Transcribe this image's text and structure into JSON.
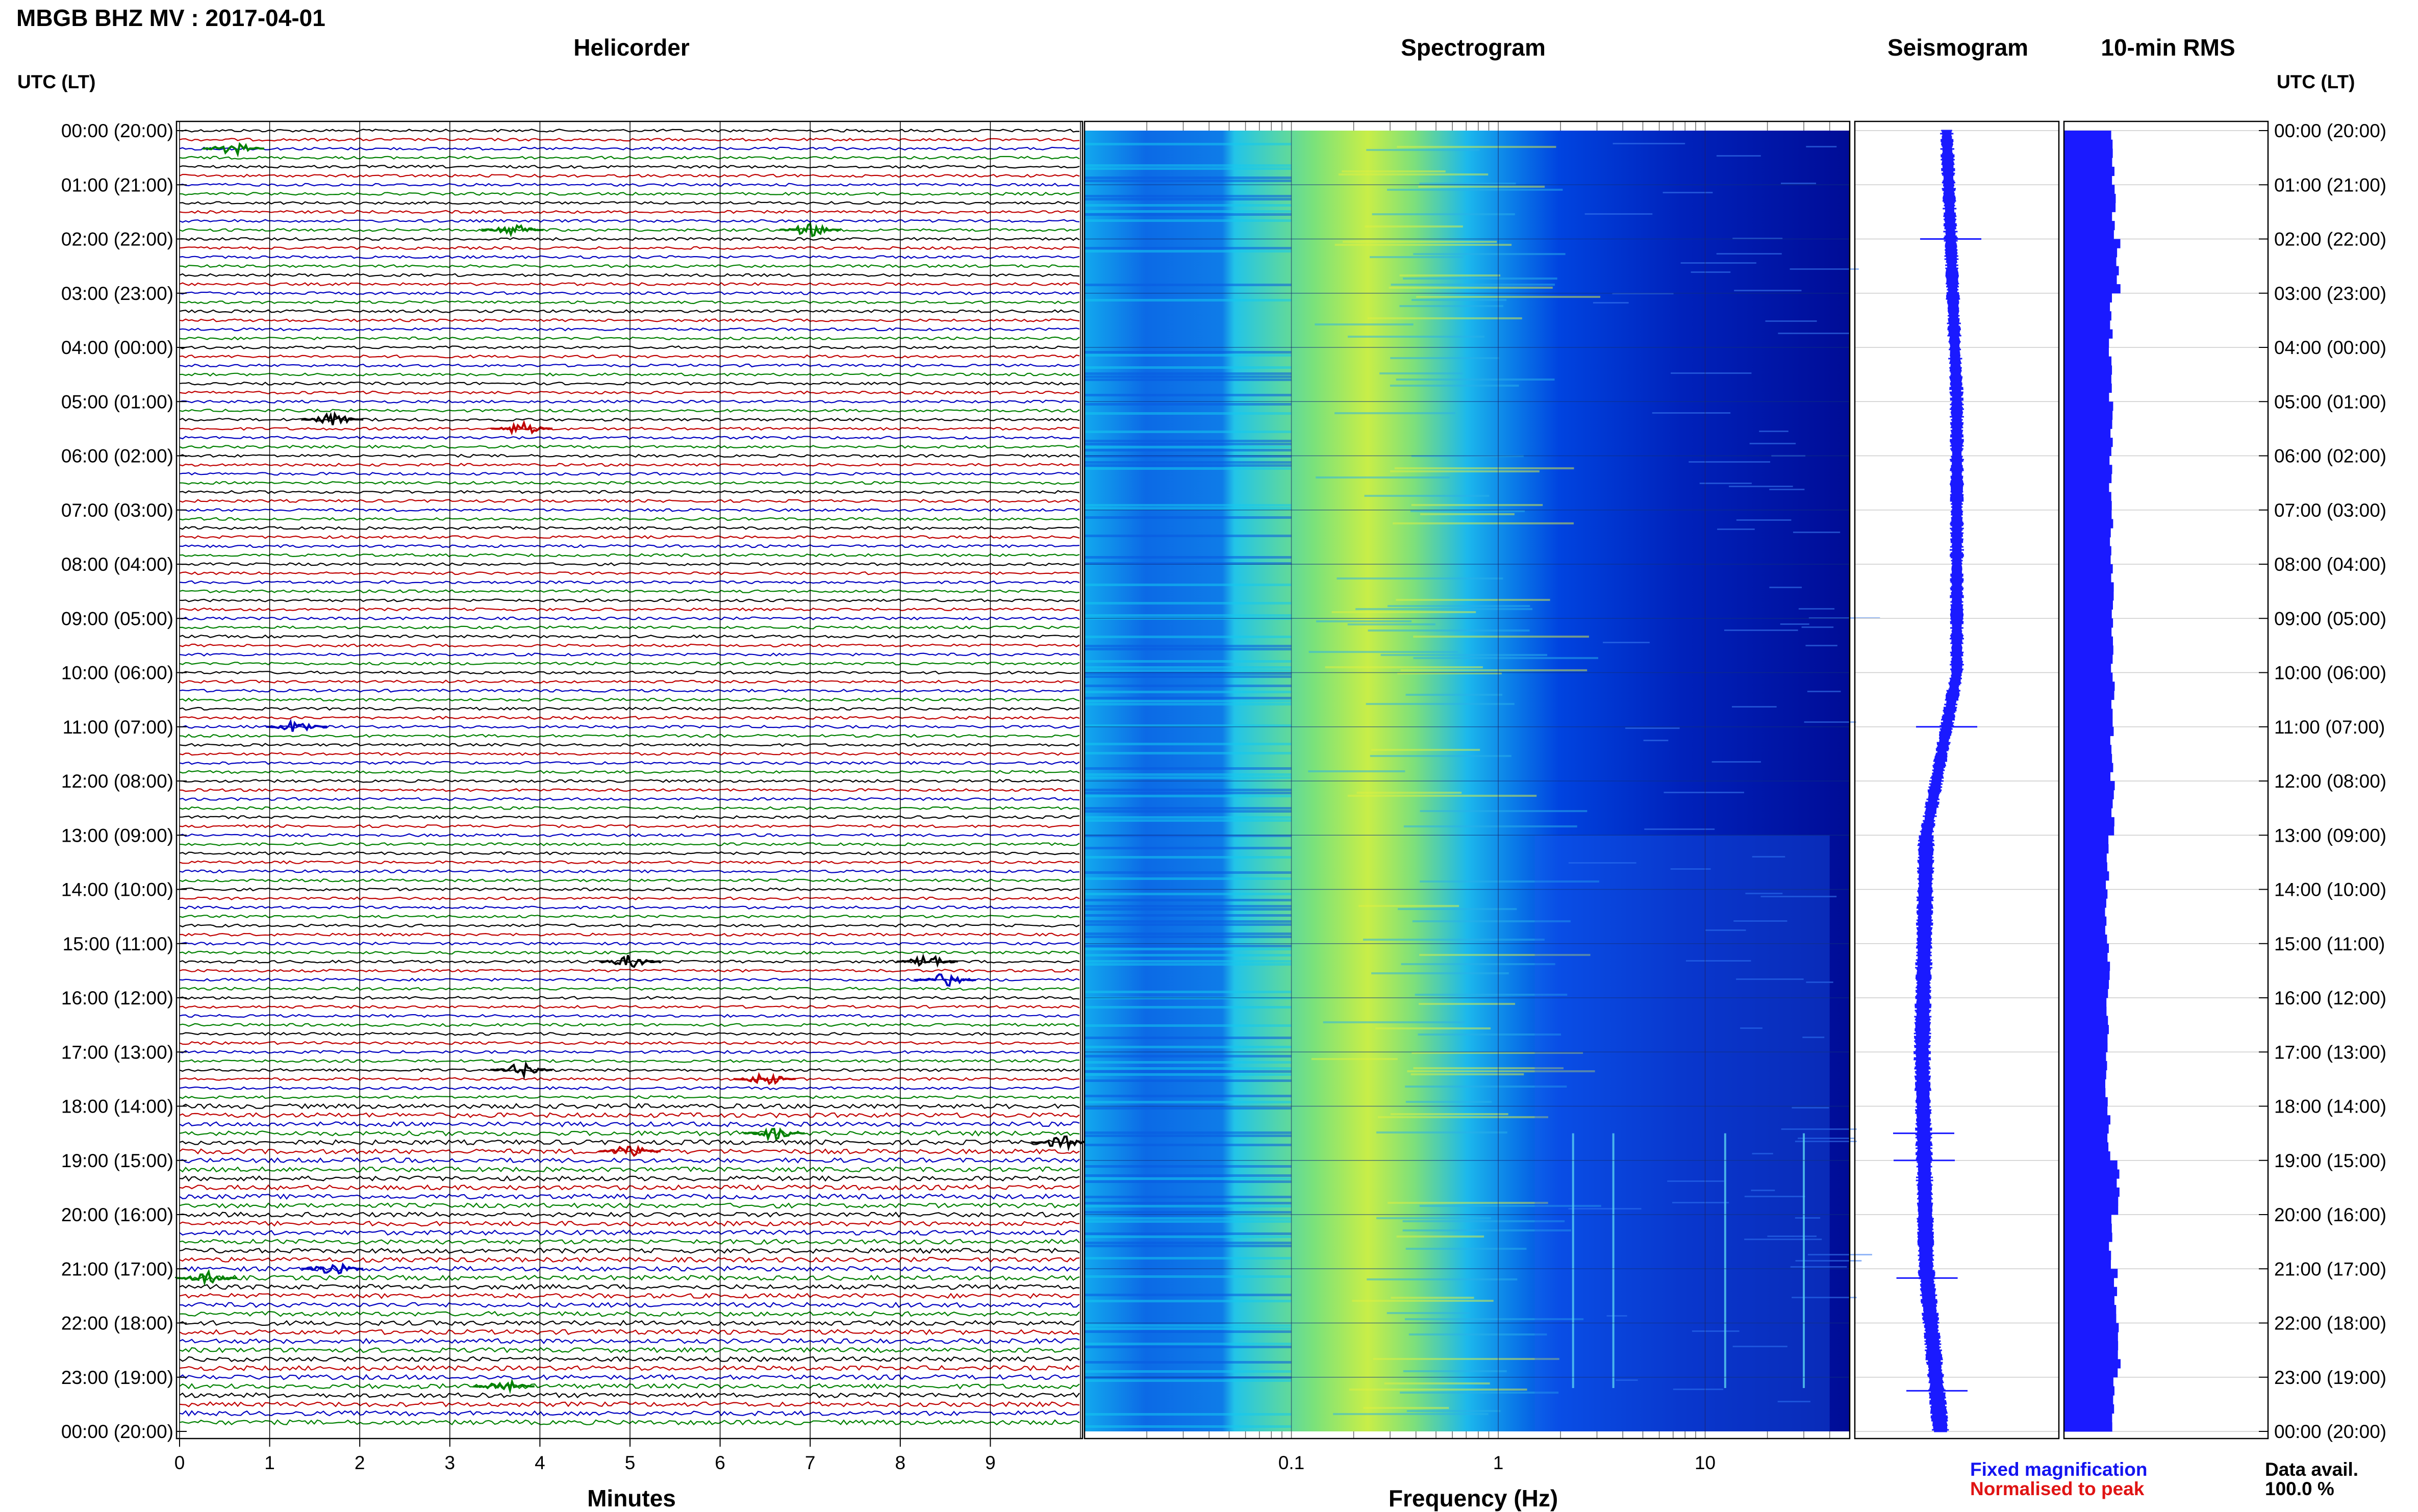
{
  "title": "MBGB BHZ MV : 2017-04-01",
  "panels": {
    "helicorder": "Helicorder",
    "spectrogram": "Spectrogram",
    "seismogram": "Seismogram",
    "rms": "10-min RMS"
  },
  "utc_label": "UTC (LT)",
  "legend": {
    "fixed": "Fixed magnification",
    "normalised": "Normalised to peak"
  },
  "data_avail": {
    "label": "Data avail.",
    "value": "100.0 %"
  },
  "colors": {
    "trace_cycle": [
      "#000000",
      "#c00000",
      "#0000c0",
      "#008000"
    ],
    "seismogram": "#1a1aff",
    "rms": "#1a1aff"
  },
  "chart_data": [
    {
      "type": "line",
      "panel": "Helicorder",
      "xlabel": "Minutes",
      "x_ticks": [
        "0",
        "1",
        "2",
        "3",
        "4",
        "5",
        "6",
        "7",
        "8",
        "9"
      ],
      "xlim": [
        0,
        10
      ],
      "ylabel": "UTC (LT)",
      "y_ticks": [
        "00:00 (20:00)",
        "01:00 (21:00)",
        "02:00 (22:00)",
        "03:00 (23:00)",
        "04:00 (00:00)",
        "05:00 (01:00)",
        "06:00 (02:00)",
        "07:00 (03:00)",
        "08:00 (04:00)",
        "09:00 (05:00)",
        "10:00 (06:00)",
        "11:00 (07:00)",
        "12:00 (08:00)",
        "13:00 (09:00)",
        "14:00 (10:00)",
        "15:00 (11:00)",
        "16:00 (12:00)",
        "17:00 (13:00)",
        "18:00 (14:00)",
        "19:00 (15:00)",
        "20:00 (16:00)",
        "21:00 (17:00)",
        "22:00 (18:00)",
        "23:00 (19:00)",
        "00:00 (20:00)"
      ],
      "lines_per_hour": 6,
      "events": [
        {
          "hour": 0.33,
          "minute": 0.6,
          "color": "green"
        },
        {
          "hour": 1.83,
          "minute": 3.7,
          "color": "green"
        },
        {
          "hour": 1.83,
          "minute": 7.0,
          "color": "green"
        },
        {
          "hour": 5.33,
          "minute": 1.7,
          "color": "black"
        },
        {
          "hour": 5.5,
          "minute": 3.8,
          "color": "red"
        },
        {
          "hour": 11.0,
          "minute": 1.3,
          "color": "blue"
        },
        {
          "hour": 15.33,
          "minute": 5.0,
          "color": "black"
        },
        {
          "hour": 15.33,
          "minute": 8.3,
          "color": "black"
        },
        {
          "hour": 15.67,
          "minute": 8.5,
          "color": "blue"
        },
        {
          "hour": 17.33,
          "minute": 3.8,
          "color": "black"
        },
        {
          "hour": 17.5,
          "minute": 6.5,
          "color": "red"
        },
        {
          "hour": 18.5,
          "minute": 6.6,
          "color": "green"
        },
        {
          "hour": 18.67,
          "minute": 9.8,
          "color": "black"
        },
        {
          "hour": 18.83,
          "minute": 5.0,
          "color": "red"
        },
        {
          "hour": 21.0,
          "minute": 1.7,
          "color": "blue"
        },
        {
          "hour": 21.17,
          "minute": 0.3,
          "color": "green"
        },
        {
          "hour": 23.17,
          "minute": 3.6,
          "color": "green"
        }
      ]
    },
    {
      "type": "heatmap",
      "panel": "Spectrogram",
      "xlabel": "Frequency (Hz)",
      "x_scale": "log",
      "xlim": [
        0.01,
        50
      ],
      "x_ticks": [
        "0.1",
        "1",
        "10"
      ],
      "ylim": [
        0,
        24
      ],
      "colormap": [
        "#000a8c",
        "#0050f0",
        "#12b4f0",
        "#d8f040"
      ],
      "peak_band_hz": [
        0.2,
        0.6
      ],
      "lines_hz": [
        2.3,
        3.6,
        12.5,
        30.0
      ]
    },
    {
      "type": "line",
      "panel": "Seismogram",
      "ylim": [
        0,
        24
      ],
      "description_points": [
        {
          "hour": 0,
          "offset": 0.45
        },
        {
          "hour": 5,
          "offset": 0.5
        },
        {
          "hour": 10,
          "offset": 0.5
        },
        {
          "hour": 13,
          "offset": 0.35
        },
        {
          "hour": 17,
          "offset": 0.33
        },
        {
          "hour": 21,
          "offset": 0.35
        },
        {
          "hour": 24,
          "offset": 0.42
        }
      ],
      "spikes_hour": [
        2.0,
        11.0,
        18.5,
        19.0,
        21.17,
        23.25
      ]
    },
    {
      "type": "bar",
      "panel": "10-min RMS",
      "orientation": "horizontal",
      "ylim": [
        0,
        24
      ],
      "hours": [
        0,
        1,
        2,
        3,
        4,
        5,
        6,
        7,
        8,
        9,
        10,
        11,
        12,
        13,
        14,
        15,
        16,
        17,
        18,
        19,
        20,
        21,
        22,
        23
      ],
      "values": [
        0.9,
        0.92,
        1.0,
        0.86,
        0.85,
        0.87,
        0.86,
        0.88,
        0.9,
        0.88,
        0.9,
        0.88,
        0.9,
        0.8,
        0.78,
        0.82,
        0.8,
        0.78,
        0.82,
        1.0,
        0.86,
        0.95,
        1.02,
        0.9
      ],
      "xlim": [
        0,
        1.2
      ]
    }
  ]
}
